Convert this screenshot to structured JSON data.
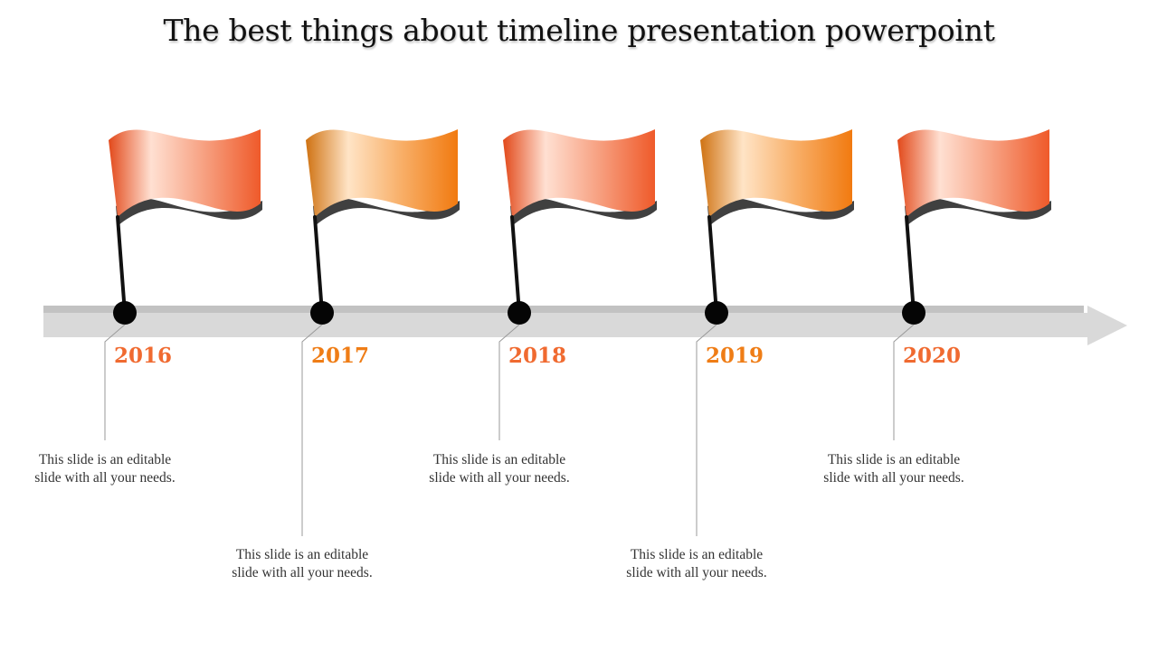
{
  "title": "The best things about timeline presentation powerpoint",
  "colors": {
    "red_orange": "#f06a3a",
    "orange": "#f58a1e",
    "year_red": "#f06a30",
    "year_orange": "#ef7d16",
    "arrow": "#d9d9d9",
    "flag_shadow": "#404040"
  },
  "milestones": [
    {
      "year": "2016",
      "text": "This slide is an editable slide with all your needs.",
      "variant": "red",
      "text_position": "upper"
    },
    {
      "year": "2017",
      "text": "This slide is an editable slide with all your needs.",
      "variant": "orange",
      "text_position": "lower"
    },
    {
      "year": "2018",
      "text": "This slide is an editable slide with all your needs.",
      "variant": "red",
      "text_position": "upper"
    },
    {
      "year": "2019",
      "text": "This slide is an editable slide with all your needs.",
      "variant": "orange",
      "text_position": "lower"
    },
    {
      "year": "2020",
      "text": "This slide is an editable slide with all your needs.",
      "variant": "red",
      "text_position": "upper"
    }
  ]
}
